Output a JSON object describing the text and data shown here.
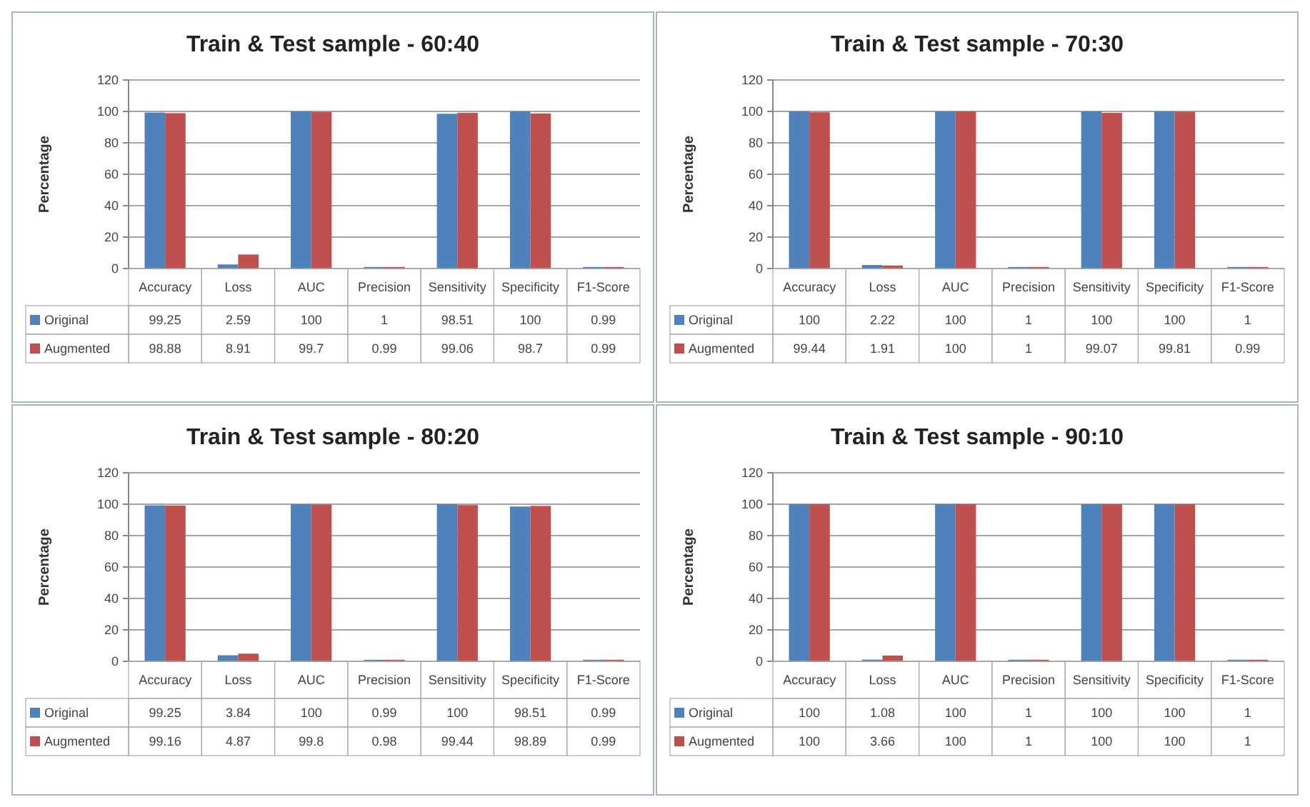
{
  "chart_data": [
    {
      "type": "bar",
      "title": "Train & Test sample - 60:40",
      "ylabel": "Percentage",
      "categories": [
        "Accuracy",
        "Loss",
        "AUC",
        "Precision",
        "Sensitivity",
        "Specificity",
        "F1-Score"
      ],
      "series": [
        {
          "name": "Original",
          "color": "#4f81bd",
          "values": [
            99.25,
            2.59,
            100,
            1,
            98.51,
            100,
            0.99
          ]
        },
        {
          "name": "Augmented",
          "color": "#c0504d",
          "values": [
            98.88,
            8.91,
            99.7,
            0.99,
            99.06,
            98.7,
            0.99
          ]
        }
      ],
      "ylim": [
        0,
        120
      ],
      "yticks": [
        0,
        20,
        40,
        60,
        80,
        100,
        120
      ],
      "grid": "y",
      "data_labels": true,
      "legend": "bottom"
    },
    {
      "type": "bar",
      "title": "Train & Test sample - 70:30",
      "ylabel": "Percentage",
      "categories": [
        "Accuracy",
        "Loss",
        "AUC",
        "Precision",
        "Sensitivity",
        "Specificity",
        "F1-Score"
      ],
      "series": [
        {
          "name": "Original",
          "color": "#4f81bd",
          "values": [
            100,
            2.22,
            100,
            1,
            100,
            100,
            1
          ]
        },
        {
          "name": "Augmented",
          "color": "#c0504d",
          "values": [
            99.44,
            1.91,
            100,
            1,
            99.07,
            99.81,
            0.99
          ]
        }
      ],
      "ylim": [
        0,
        120
      ],
      "yticks": [
        0,
        20,
        40,
        60,
        80,
        100,
        120
      ],
      "grid": "y",
      "data_labels": true,
      "legend": "bottom"
    },
    {
      "type": "bar",
      "title": "Train & Test sample - 80:20",
      "ylabel": "Percentage",
      "categories": [
        "Accuracy",
        "Loss",
        "AUC",
        "Precision",
        "Sensitivity",
        "Specificity",
        "F1-Score"
      ],
      "series": [
        {
          "name": "Original",
          "color": "#4f81bd",
          "values": [
            99.25,
            3.84,
            100,
            0.99,
            100,
            98.51,
            0.99
          ]
        },
        {
          "name": "Augmented",
          "color": "#c0504d",
          "values": [
            99.16,
            4.87,
            99.8,
            0.98,
            99.44,
            98.89,
            0.99
          ]
        }
      ],
      "ylim": [
        0,
        120
      ],
      "yticks": [
        0,
        20,
        40,
        60,
        80,
        100,
        120
      ],
      "grid": "y",
      "data_labels": true,
      "legend": "bottom"
    },
    {
      "type": "bar",
      "title": "Train & Test sample - 90:10",
      "ylabel": "Percentage",
      "categories": [
        "Accuracy",
        "Loss",
        "AUC",
        "Precision",
        "Sensitivity",
        "Specificity",
        "F1-Score"
      ],
      "series": [
        {
          "name": "Original",
          "color": "#4f81bd",
          "values": [
            100,
            1.08,
            100,
            1,
            100,
            100,
            1
          ]
        },
        {
          "name": "Augmented",
          "color": "#c0504d",
          "values": [
            100,
            3.66,
            100,
            1,
            100,
            100,
            1
          ]
        }
      ],
      "ylim": [
        0,
        120
      ],
      "yticks": [
        0,
        20,
        40,
        60,
        80,
        100,
        120
      ],
      "grid": "y",
      "data_labels": true,
      "legend": "bottom"
    }
  ]
}
